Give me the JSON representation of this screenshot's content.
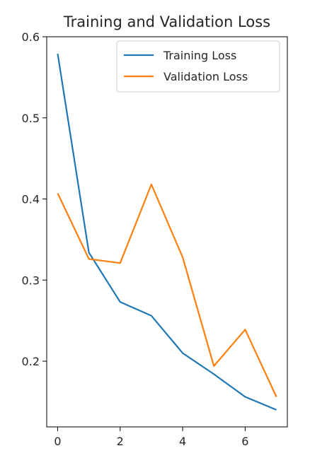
{
  "chart_data": {
    "type": "line",
    "title": "Training and Validation Loss",
    "xlabel": "",
    "ylabel": "",
    "x": [
      0,
      1,
      2,
      3,
      4,
      5,
      6,
      7
    ],
    "series": [
      {
        "name": "Training Loss",
        "color": "#1f77b4",
        "values": [
          0.579,
          0.334,
          0.273,
          0.256,
          0.21,
          0.184,
          0.156,
          0.14
        ]
      },
      {
        "name": "Validation Loss",
        "color": "#ff7f0e",
        "values": [
          0.407,
          0.326,
          0.321,
          0.418,
          0.328,
          0.194,
          0.239,
          0.156
        ]
      }
    ],
    "xlim": [
      -0.35,
      7.35
    ],
    "ylim": [
      0.119,
      0.6
    ],
    "xticks": [
      0,
      2,
      4,
      6
    ],
    "yticks": [
      0.2,
      0.3,
      0.4,
      0.5,
      0.6
    ],
    "xtick_labels": [
      "0",
      "2",
      "4",
      "6"
    ],
    "ytick_labels": [
      "0.2",
      "0.3",
      "0.4",
      "0.5",
      "0.6"
    ],
    "grid": false,
    "legend_position": "top-right"
  }
}
